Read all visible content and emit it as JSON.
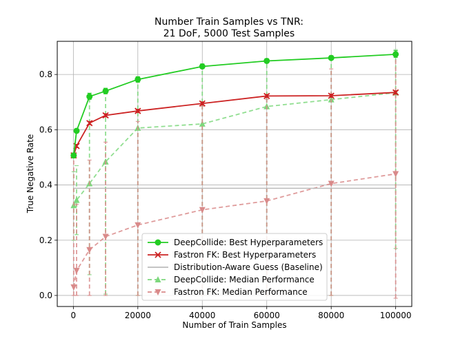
{
  "chart_data": {
    "type": "line",
    "title_line1": "Number Train Samples vs TNR:",
    "title_line2": "21 DoF, 5000 Test Samples",
    "xlabel": "Number of Train Samples",
    "ylabel": "True Negative Rate",
    "xlim": [
      -5000,
      105000
    ],
    "ylim": [
      -0.04,
      0.92
    ],
    "xticks": [
      0,
      20000,
      40000,
      60000,
      80000,
      100000
    ],
    "xtick_labels": [
      "0",
      "20000",
      "40000",
      "60000",
      "80000",
      "100000"
    ],
    "yticks": [
      0.0,
      0.2,
      0.4,
      0.6,
      0.8
    ],
    "ytick_labels": [
      "0.0",
      "0.2",
      "0.4",
      "0.6",
      "0.8"
    ],
    "grid": true,
    "legend_position": "lower-right",
    "x": [
      100,
      1000,
      5000,
      10000,
      20000,
      40000,
      60000,
      80000,
      100000
    ],
    "series": [
      {
        "name": "DeepCollide: Best Hyperparameters",
        "color": "#22cc22",
        "style": "solid",
        "marker": "circle",
        "values": [
          0.507,
          0.596,
          0.72,
          0.74,
          0.782,
          0.829,
          0.849,
          0.86,
          0.873
        ],
        "err_low": [
          0.498,
          0.59,
          0.71,
          0.73,
          0.772,
          0.822,
          0.842,
          0.853,
          0.862
        ],
        "err_high": [
          0.515,
          0.603,
          0.732,
          0.75,
          0.792,
          0.838,
          0.857,
          0.868,
          0.886
        ]
      },
      {
        "name": "Fastron FK: Best Hyperparameters",
        "color": "#cc2222",
        "style": "solid",
        "marker": "x",
        "values": [
          0.507,
          0.541,
          0.624,
          0.652,
          0.668,
          0.695,
          0.722,
          0.723,
          0.735
        ],
        "err_low": [
          0.5,
          0.535,
          0.618,
          0.646,
          0.662,
          0.689,
          0.716,
          0.717,
          0.729
        ],
        "err_high": [
          0.514,
          0.547,
          0.63,
          0.658,
          0.674,
          0.701,
          0.728,
          0.729,
          0.741
        ]
      },
      {
        "name": "Distribution-Aware Guess (Baseline)",
        "color": "#bbbbbb",
        "style": "solid",
        "marker": "none",
        "constant": 0.388
      },
      {
        "name": "DeepCollide: Median Performance",
        "color": "#7dd87d",
        "style": "dashed",
        "marker": "triangle-up",
        "values": [
          0.326,
          0.345,
          0.405,
          0.484,
          0.606,
          0.621,
          0.684,
          0.709,
          0.734
        ],
        "err_low": [
          0.2,
          0.22,
          0.075,
          0.005,
          0.0,
          0.0,
          0.0,
          0.0,
          0.17
        ],
        "err_high": [
          0.448,
          0.47,
          0.715,
          0.74,
          0.79,
          0.838,
          0.857,
          0.86,
          0.89
        ]
      },
      {
        "name": "Fastron FK: Median Performance",
        "color": "#d98a8a",
        "style": "dashed",
        "marker": "triangle-down",
        "values": [
          0.03,
          0.09,
          0.165,
          0.213,
          0.255,
          0.31,
          0.342,
          0.405,
          0.44
        ],
        "err_low": [
          0.0,
          0.0,
          0.0,
          0.0,
          0.0,
          0.0,
          0.0,
          0.0,
          -0.01
        ],
        "err_high": [
          0.51,
          0.33,
          0.49,
          0.555,
          0.63,
          0.685,
          0.71,
          0.82,
          0.88
        ]
      }
    ]
  }
}
